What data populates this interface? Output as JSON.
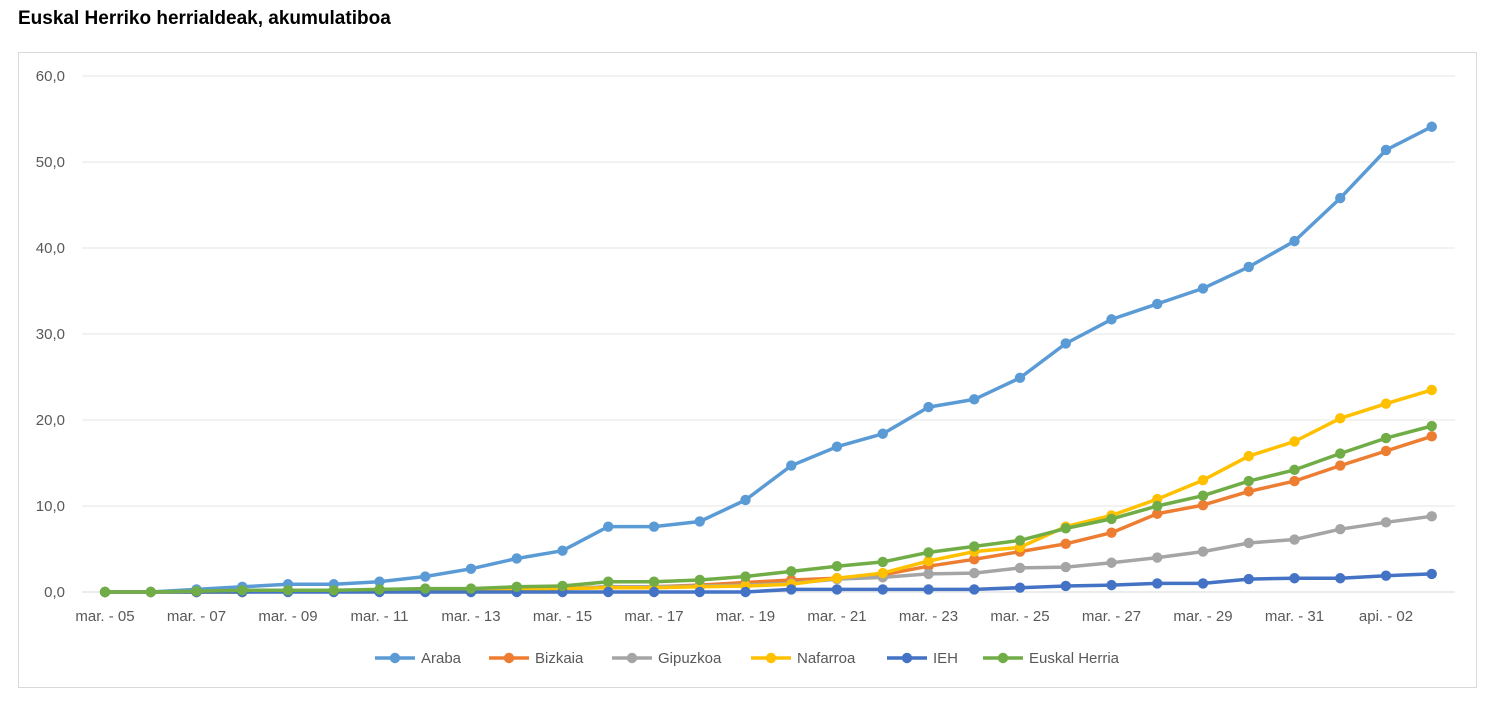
{
  "page": {
    "title": "Euskal Herriko herrialdeak, akumulatiboa"
  },
  "chart_data": {
    "type": "line",
    "title": "Euskal Herriko herrialdeak, akumulatiboa",
    "xlabel": "",
    "ylabel": "",
    "ylim": [
      0,
      60
    ],
    "y_ticks": [
      "0,0",
      "10,0",
      "20,0",
      "30,0",
      "40,0",
      "50,0",
      "60,0"
    ],
    "x_tick_labels": [
      "mar. - 05",
      "mar. - 07",
      "mar. - 09",
      "mar. - 11",
      "mar. - 13",
      "mar. - 15",
      "mar. - 17",
      "mar. - 19",
      "mar. - 21",
      "mar. - 23",
      "mar. - 25",
      "mar. - 27",
      "mar. - 29",
      "mar. - 31",
      "api. - 02"
    ],
    "x": [
      "mar. - 05",
      "mar. - 06",
      "mar. - 07",
      "mar. - 08",
      "mar. - 09",
      "mar. - 10",
      "mar. - 11",
      "mar. - 12",
      "mar. - 13",
      "mar. - 14",
      "mar. - 15",
      "mar. - 16",
      "mar. - 17",
      "mar. - 18",
      "mar. - 19",
      "mar. - 20",
      "mar. - 21",
      "mar. - 22",
      "mar. - 23",
      "mar. - 24",
      "mar. - 25",
      "mar. - 26",
      "mar. - 27",
      "mar. - 28",
      "mar. - 29",
      "mar. - 30",
      "mar. - 31",
      "api. - 01",
      "api. - 02",
      "api. - 03"
    ],
    "grid": true,
    "legend_position": "bottom",
    "series": [
      {
        "name": "Araba",
        "color": "#5b9bd5",
        "values": [
          0.0,
          0.0,
          0.3,
          0.6,
          0.9,
          0.9,
          1.2,
          1.8,
          2.7,
          3.9,
          4.8,
          7.6,
          7.6,
          8.2,
          10.7,
          14.7,
          16.9,
          18.4,
          21.5,
          22.4,
          24.9,
          28.9,
          31.7,
          33.5,
          35.3,
          37.8,
          40.8,
          45.8,
          51.4,
          54.1
        ]
      },
      {
        "name": "Bizkaia",
        "color": "#ed7d31",
        "values": [
          0.0,
          0.0,
          0.0,
          0.0,
          0.1,
          0.1,
          0.1,
          0.2,
          0.2,
          0.3,
          0.4,
          0.6,
          0.6,
          0.8,
          1.1,
          1.4,
          1.6,
          2.0,
          3.0,
          3.8,
          4.7,
          5.6,
          6.9,
          9.1,
          10.1,
          11.7,
          12.9,
          14.7,
          16.4,
          18.1
        ]
      },
      {
        "name": "Gipuzkoa",
        "color": "#a5a5a5",
        "values": [
          0.0,
          0.0,
          0.0,
          0.0,
          0.1,
          0.1,
          0.1,
          0.2,
          0.2,
          0.3,
          0.4,
          0.6,
          0.6,
          0.7,
          0.8,
          1.0,
          1.5,
          1.7,
          2.1,
          2.2,
          2.8,
          2.9,
          3.4,
          4.0,
          4.7,
          5.7,
          6.1,
          7.3,
          8.1,
          8.8
        ]
      },
      {
        "name": "Nafarroa",
        "color": "#ffc000",
        "values": [
          0.0,
          0.0,
          0.0,
          0.0,
          0.1,
          0.1,
          0.1,
          0.2,
          0.2,
          0.3,
          0.4,
          0.5,
          0.5,
          0.6,
          0.7,
          0.9,
          1.6,
          2.2,
          3.6,
          4.7,
          5.2,
          7.6,
          8.9,
          10.8,
          13.0,
          15.8,
          17.5,
          20.2,
          21.9,
          23.5
        ]
      },
      {
        "name": "IEH",
        "color": "#4472c4",
        "values": [
          0.0,
          0.0,
          0.0,
          0.0,
          0.0,
          0.0,
          0.0,
          0.0,
          0.0,
          0.0,
          0.0,
          0.0,
          0.0,
          0.0,
          0.0,
          0.3,
          0.3,
          0.3,
          0.3,
          0.3,
          0.5,
          0.7,
          0.8,
          1.0,
          1.0,
          1.5,
          1.6,
          1.6,
          1.9,
          2.1
        ]
      },
      {
        "name": "Euskal Herria",
        "color": "#70ad47",
        "values": [
          0.0,
          0.0,
          0.1,
          0.2,
          0.2,
          0.2,
          0.3,
          0.4,
          0.4,
          0.6,
          0.7,
          1.2,
          1.2,
          1.4,
          1.8,
          2.4,
          3.0,
          3.5,
          4.6,
          5.3,
          6.0,
          7.4,
          8.5,
          10.0,
          11.2,
          12.9,
          14.2,
          16.1,
          17.9,
          19.3
        ]
      }
    ]
  }
}
